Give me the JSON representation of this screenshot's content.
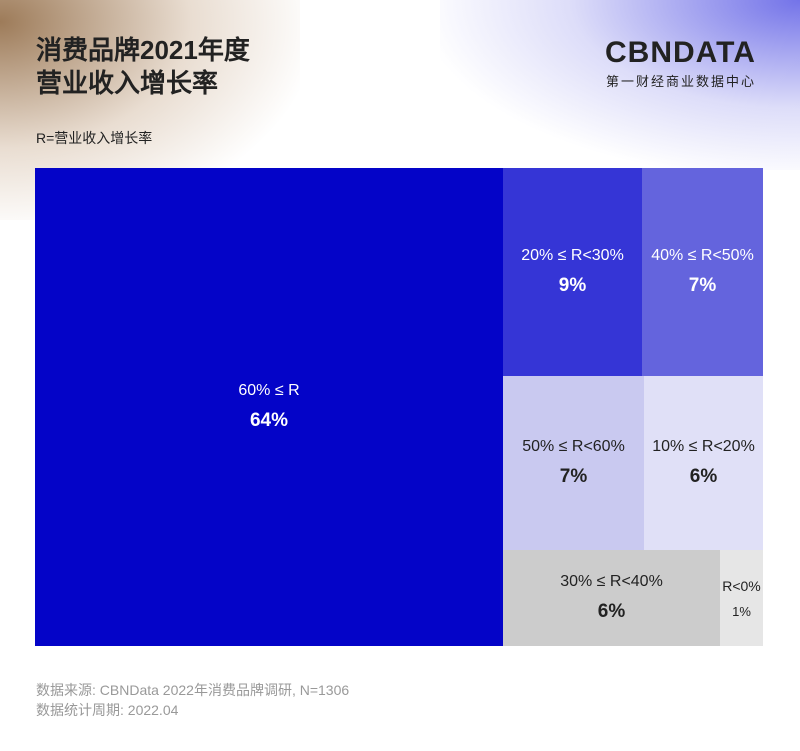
{
  "header": {
    "title_line1": "消费品牌2021年度",
    "title_line2": "营业收入增长率",
    "logo": "CBNDATA",
    "logo_sub": "第一财经商业数据中心"
  },
  "legend_note": "R=营业收入增长率",
  "chart_data": {
    "type": "treemap",
    "items": [
      {
        "label": "60% ≤ R",
        "value": "64%",
        "color": "#0404c8",
        "text_color": "#ffffff"
      },
      {
        "label": "20% ≤ R<30%",
        "value": "9%",
        "color": "#3535d6",
        "text_color": "#ffffff"
      },
      {
        "label": "40% ≤ R<50%",
        "value": "7%",
        "color": "#6464dd",
        "text_color": "#ffffff"
      },
      {
        "label": "50% ≤ R<60%",
        "value": "7%",
        "color": "#c9c9f0",
        "text_color": "#222222"
      },
      {
        "label": "10% ≤ R<20%",
        "value": "6%",
        "color": "#e0e0f7",
        "text_color": "#222222"
      },
      {
        "label": "30% ≤ R<40%",
        "value": "6%",
        "color": "#cccccc",
        "text_color": "#222222"
      },
      {
        "label": "R<0%",
        "value": "1%",
        "color": "#e6e6e6",
        "text_color": "#222222"
      }
    ]
  },
  "footer": {
    "source": "数据来源: CBNData 2022年消费品牌调研, N=1306",
    "period": "数据统计周期: 2022.04"
  }
}
